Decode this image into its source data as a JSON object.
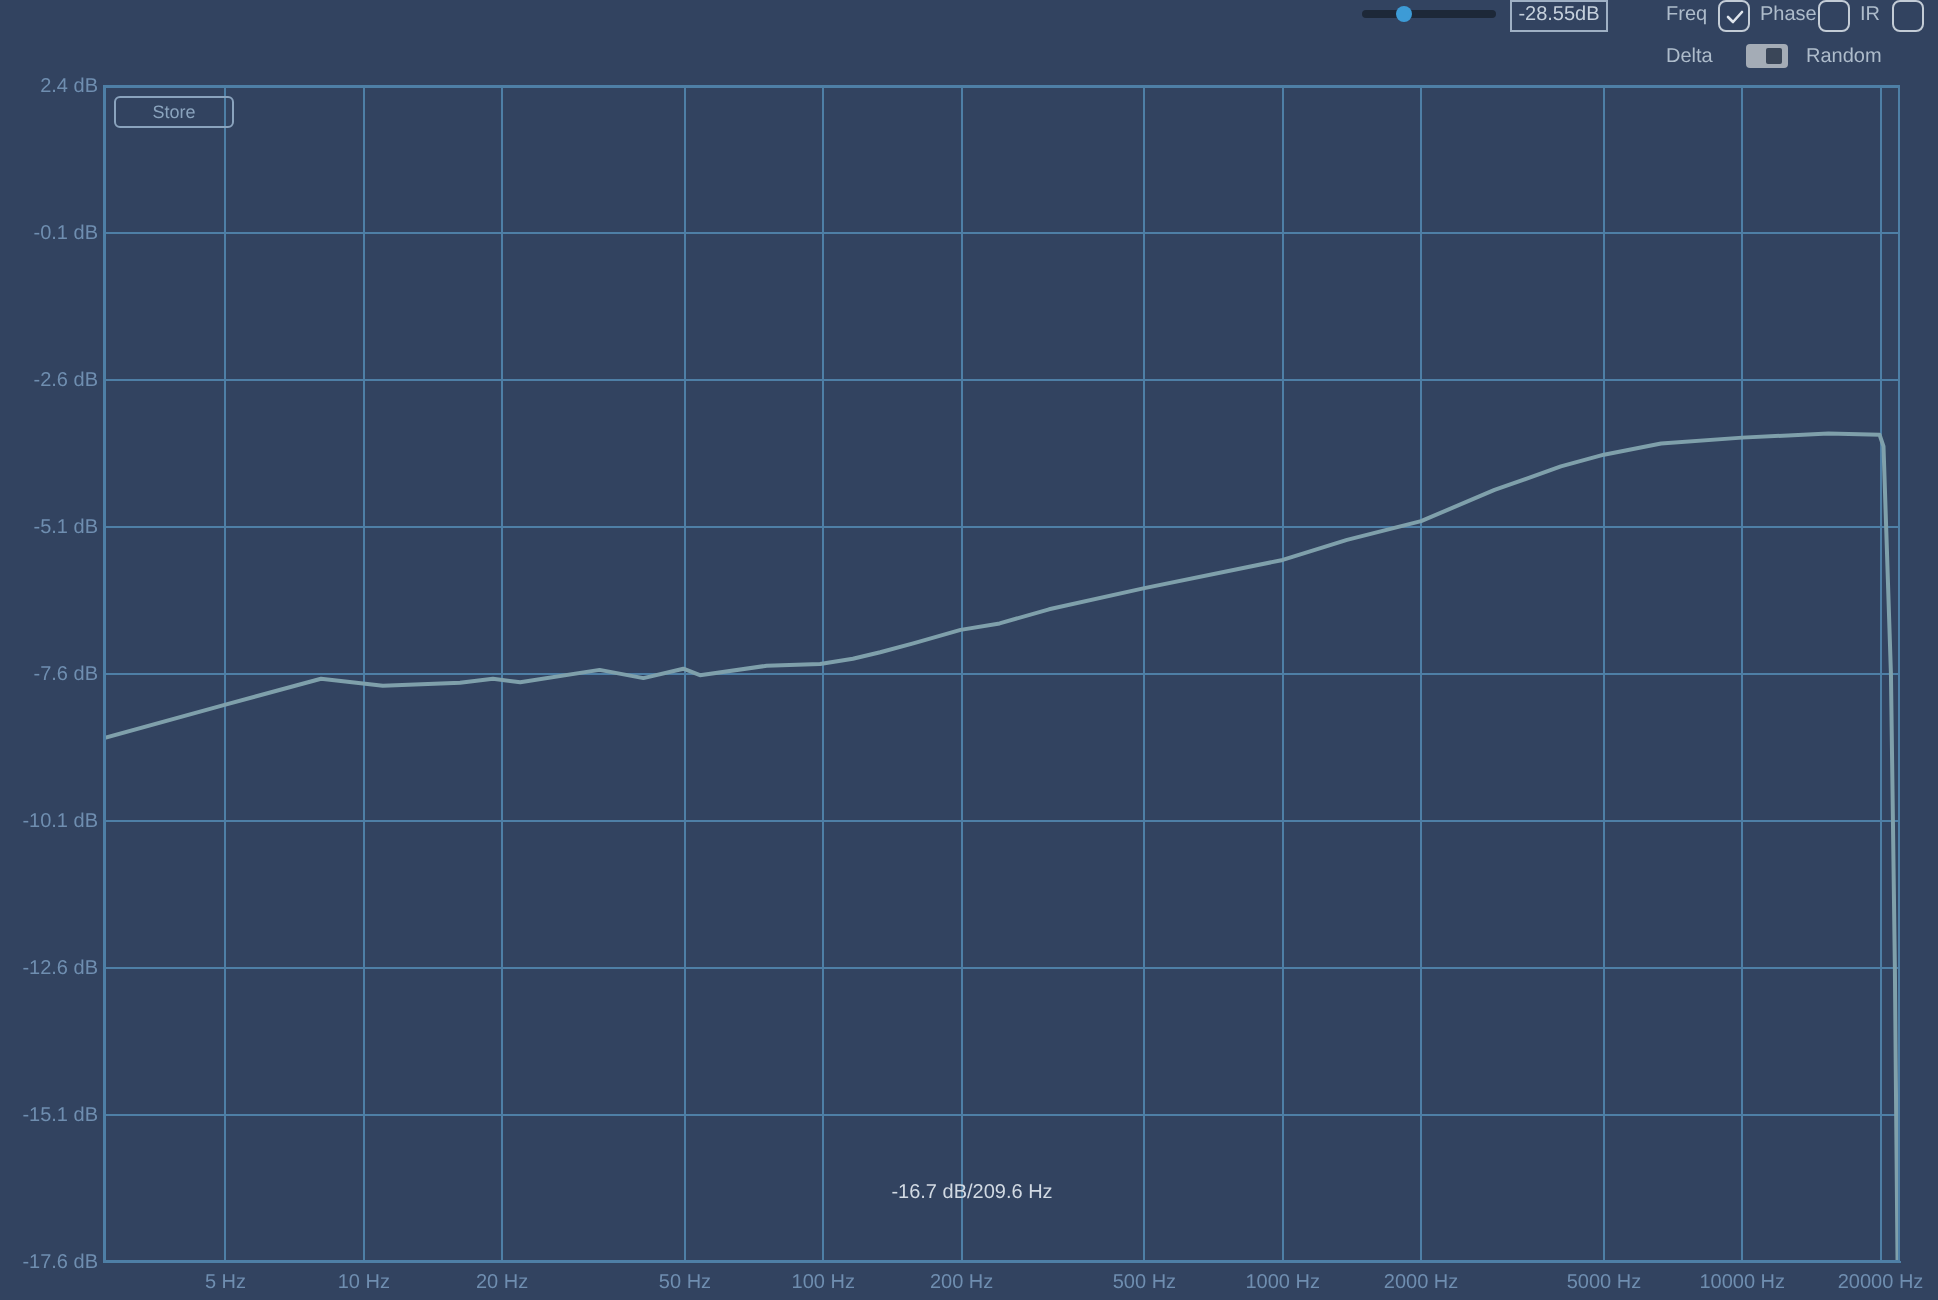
{
  "chart_data": {
    "type": "line",
    "x": [
      2.72,
      5,
      8.07,
      11,
      16.2,
      19.1,
      21.9,
      32.6,
      40.6,
      49.6,
      53.9,
      75.3,
      98.4,
      116,
      133,
      157,
      199,
      242,
      310,
      500,
      1000,
      1380,
      2000,
      2890,
      4030,
      5000,
      6660,
      10000,
      15400,
      19900,
      20300,
      20570,
      21070,
      21280,
      21490,
      21630,
      21780
    ],
    "values": [
      -8.69,
      -8.12,
      -7.68,
      -7.8,
      -7.75,
      -7.68,
      -7.74,
      -7.53,
      -7.67,
      -7.51,
      -7.62,
      -7.46,
      -7.43,
      -7.34,
      -7.23,
      -7.08,
      -6.85,
      -6.74,
      -6.5,
      -6.14,
      -5.66,
      -5.32,
      -5.0,
      -4.47,
      -4.07,
      -3.87,
      -3.68,
      -3.58,
      -3.51,
      -3.53,
      -3.73,
      -5.09,
      -7.59,
      -10.08,
      -12.58,
      -15.07,
      -17.6
    ],
    "color": "#7fa0ab",
    "log": "x",
    "xlim": [
      2.72,
      22050
    ],
    "xticks": [
      {
        "value": 5,
        "label": "5 Hz"
      },
      {
        "value": 10,
        "label": "10 Hz"
      },
      {
        "value": 20,
        "label": "20 Hz"
      },
      {
        "value": 50,
        "label": "50 Hz"
      },
      {
        "value": 100,
        "label": "100 Hz"
      },
      {
        "value": 200,
        "label": "200 Hz"
      },
      {
        "value": 500,
        "label": "500 Hz"
      },
      {
        "value": 1000,
        "label": "1000 Hz"
      },
      {
        "value": 2000,
        "label": "2000 Hz"
      },
      {
        "value": 5000,
        "label": "5000 Hz"
      },
      {
        "value": 10000,
        "label": "10000 Hz"
      },
      {
        "value": 20000,
        "label": "20000 Hz"
      }
    ],
    "ylim": [
      -17.6,
      2.4
    ],
    "yticks": [
      {
        "value": -17.6,
        "label": "-17.6 dB"
      },
      {
        "value": -15.1,
        "label": "-15.1 dB"
      },
      {
        "value": -12.6,
        "label": "-12.6 dB"
      },
      {
        "value": -10.1,
        "label": "-10.1 dB"
      },
      {
        "value": -7.6,
        "label": "-7.6 dB"
      },
      {
        "value": -5.1,
        "label": "-5.1 dB"
      },
      {
        "value": -2.6,
        "label": "-2.6 dB"
      },
      {
        "value": -0.1,
        "label": "-0.1 dB"
      },
      {
        "value": 2.4,
        "label": "2.4 dB"
      }
    ],
    "grid": true,
    "line_style": "solid",
    "annotations": [
      "-16.7 dB/209.6 Hz",
      "Store",
      "-28.55dB",
      "Freq",
      "Phase",
      "IR",
      "Delta",
      "Random"
    ]
  }
}
